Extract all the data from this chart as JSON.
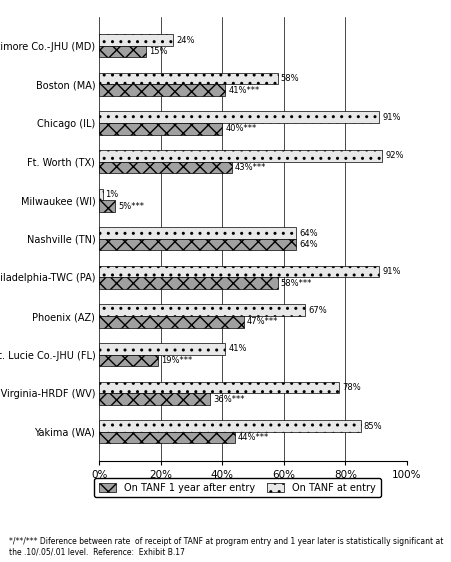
{
  "sites": [
    "Baltimore Co.-JHU (MD)",
    "Boston (MA)",
    "Chicago (IL)",
    "Ft. Worth (TX)",
    "Milwaukee (WI)",
    "Nashville (TN)",
    "Philadelphia-TWC (PA)",
    "Phoenix (AZ)",
    "St. Lucie Co.-JHU (FL)",
    "W. Virginia-HRDF (WV)",
    "Yakima (WA)"
  ],
  "at_entry": [
    24,
    58,
    91,
    92,
    1,
    64,
    91,
    67,
    41,
    78,
    85
  ],
  "one_year": [
    15,
    41,
    40,
    43,
    5,
    64,
    58,
    47,
    19,
    36,
    44
  ],
  "at_entry_labels": [
    "24%",
    "58%",
    "91%",
    "92%",
    "1%",
    "64%",
    "91%",
    "67%",
    "41%",
    "78%",
    "85%"
  ],
  "one_year_labels": [
    "15%",
    "41%***",
    "40%***",
    "43%***",
    "5%***",
    "64%",
    "58%***",
    "47%***",
    "19%***",
    "36%***",
    "44%***"
  ],
  "color_at_entry": "#e8e8e8",
  "color_one_year": "#a0a0a0",
  "hatch_at_entry": "..",
  "hatch_one_year": "xx",
  "xlim": [
    0,
    100
  ],
  "xticks": [
    0,
    20,
    40,
    60,
    80,
    100
  ],
  "xticklabels": [
    "0%",
    "20%",
    "40%",
    "60%",
    "80%",
    "100%"
  ],
  "footnote": "*/**/*** Diference between rate  of receipt of TANF at program entry and 1 year later is statistically significant at\nthe .10/.05/.01 level.  Reference:  Exhibit B.17",
  "legend_one_year": "On TANF 1 year after entry",
  "legend_at_entry": "On TANF at entry"
}
